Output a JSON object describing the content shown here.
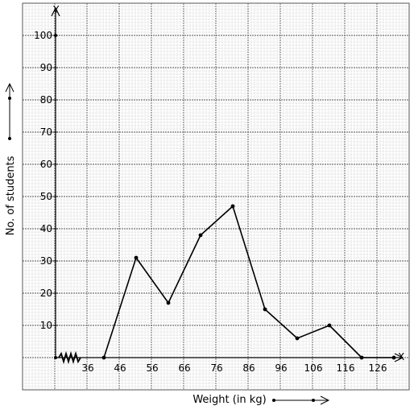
{
  "chart_data": {
    "type": "line",
    "title": "",
    "xlabel": "Weight (in kg)",
    "ylabel": "No. of students",
    "x_axis_letter": "X",
    "y_axis_letter": "Y",
    "x_tick_labels": [
      "36",
      "46",
      "56",
      "66",
      "76",
      "86",
      "96",
      "106",
      "116",
      "126"
    ],
    "x_tick_values": [
      36,
      46,
      56,
      66,
      76,
      86,
      96,
      106,
      116,
      126
    ],
    "y_tick_labels": [
      "10",
      "20",
      "30",
      "40",
      "50",
      "60",
      "70",
      "80",
      "90",
      "100"
    ],
    "y_tick_values": [
      10,
      20,
      30,
      40,
      50,
      60,
      70,
      80,
      90,
      100
    ],
    "xlim": [
      26,
      131
    ],
    "ylim": [
      0,
      100
    ],
    "axis_break": "zigzag on x-axis near origin",
    "grid": true,
    "series": [
      {
        "x": [
          41,
          51,
          61,
          71,
          81,
          91,
          101,
          111,
          121,
          131
        ],
        "y": [
          0,
          31,
          17,
          38,
          47,
          15,
          6,
          10,
          0,
          0
        ]
      }
    ],
    "colors": {
      "line": "#000000",
      "grid_minor": "#b8b8b8",
      "grid_major": "#555555",
      "background": "#ffffff"
    }
  }
}
